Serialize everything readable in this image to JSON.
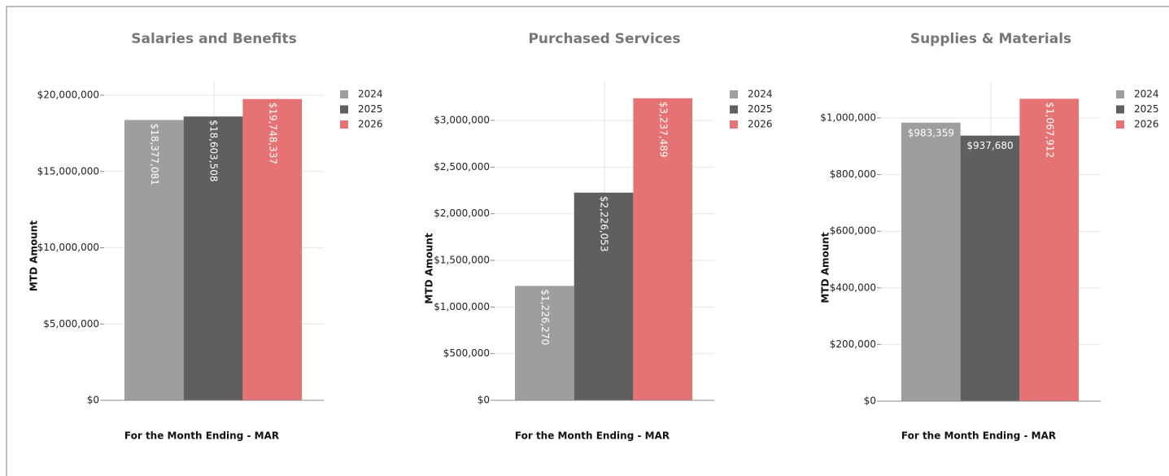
{
  "chart_data": [
    {
      "type": "bar",
      "title": "Salaries and Benefits",
      "ylabel": "MTD Amount",
      "xlabel": "For the Month Ending - MAR",
      "ylim": [
        0,
        20000000
      ],
      "yticks": [
        {
          "value": 0,
          "label": "$0"
        },
        {
          "value": 5000000,
          "label": "$5,000,000"
        },
        {
          "value": 10000000,
          "label": "$10,000,000"
        },
        {
          "value": 15000000,
          "label": "$15,000,000"
        },
        {
          "value": 20000000,
          "label": "$20,000,000"
        }
      ],
      "series": [
        {
          "name": "2024",
          "color": "#9e9e9e",
          "values": [
            18377081
          ],
          "value_labels": [
            "$18,377,081"
          ]
        },
        {
          "name": "2025",
          "color": "#5f5f5f",
          "values": [
            18603508
          ],
          "value_labels": [
            "$18,603,508"
          ]
        },
        {
          "name": "2026",
          "color": "#e57373",
          "values": [
            19748337
          ],
          "value_labels": [
            "$19,748,337"
          ]
        }
      ]
    },
    {
      "type": "bar",
      "title": "Purchased Services",
      "ylabel": "MTD Amount",
      "xlabel": "For the Month Ending - MAR",
      "ylim": [
        0,
        3000000
      ],
      "yticks": [
        {
          "value": 0,
          "label": "$0"
        },
        {
          "value": 500000,
          "label": "$500,000"
        },
        {
          "value": 1000000,
          "label": "$1,000,000"
        },
        {
          "value": 1500000,
          "label": "$1,500,000"
        },
        {
          "value": 2000000,
          "label": "$2,000,000"
        },
        {
          "value": 2500000,
          "label": "$2,500,000"
        },
        {
          "value": 3000000,
          "label": "$3,000,000"
        }
      ],
      "series": [
        {
          "name": "2024",
          "color": "#9e9e9e",
          "values": [
            1226270
          ],
          "value_labels": [
            "$1,226,270"
          ]
        },
        {
          "name": "2025",
          "color": "#5f5f5f",
          "values": [
            2226053
          ],
          "value_labels": [
            "$2,226,053"
          ]
        },
        {
          "name": "2026",
          "color": "#e57373",
          "values": [
            3237489
          ],
          "value_labels": [
            "$3,237,489"
          ]
        }
      ]
    },
    {
      "type": "bar",
      "title": "Supplies & Materials",
      "ylabel": "MTD Amount",
      "xlabel": "For the Month Ending - MAR",
      "ylim": [
        0,
        1000000
      ],
      "yticks": [
        {
          "value": 0,
          "label": "$0"
        },
        {
          "value": 200000,
          "label": "$200,000"
        },
        {
          "value": 400000,
          "label": "$400,000"
        },
        {
          "value": 600000,
          "label": "$600,000"
        },
        {
          "value": 800000,
          "label": "$800,000"
        },
        {
          "value": 1000000,
          "label": "$1,000,000"
        }
      ],
      "series": [
        {
          "name": "2024",
          "color": "#9e9e9e",
          "values": [
            983359
          ],
          "value_labels": [
            "$983,359"
          ]
        },
        {
          "name": "2025",
          "color": "#5f5f5f",
          "values": [
            937680
          ],
          "value_labels": [
            "$937,680"
          ]
        },
        {
          "name": "2026",
          "color": "#e57373",
          "values": [
            1067912
          ],
          "value_labels": [
            "$1,067,912"
          ]
        }
      ]
    }
  ]
}
